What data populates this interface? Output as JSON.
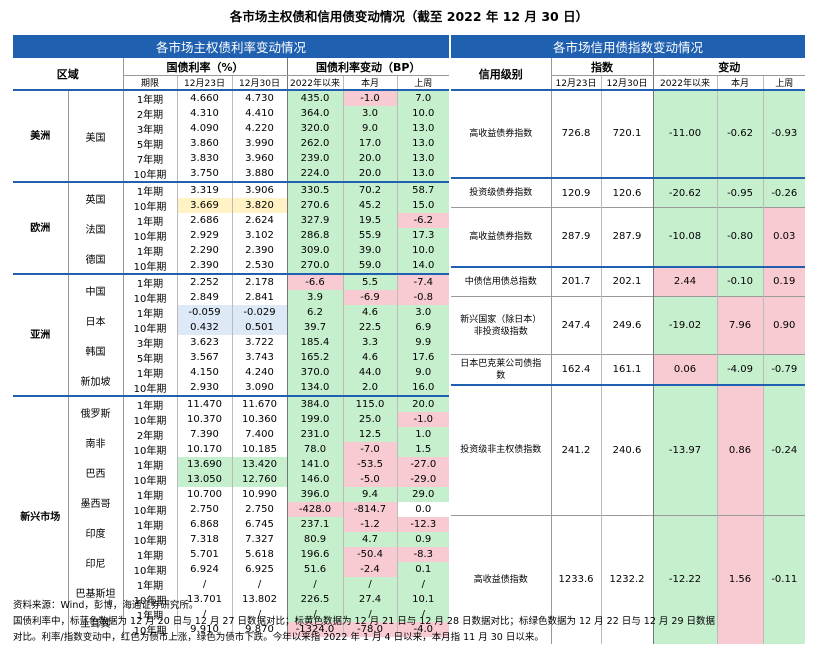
{
  "title": "各市场主权债和信用债变动情况（截至 2022 年 12 月 30 日）",
  "left": {
    "banner": "各市场主权债利率变动情况",
    "region_header": "区域",
    "yield_header": "国债利率（%）",
    "change_header": "国债利率变动（BP）",
    "sub": {
      "term": "期限",
      "d1": "12月23日",
      "d2": "12月30日",
      "ytd": "2022年以来",
      "mtd": "本月",
      "wk": "上周"
    },
    "regions": [
      {
        "name": "美洲",
        "countries": [
          {
            "name": "美国",
            "rows": [
              {
                "term": "1年期",
                "d1": "4.660",
                "d2": "4.730",
                "ytd": "435.0",
                "mtd": "-1.0",
                "wk": "7.0",
                "cm": "red"
              },
              {
                "term": "2年期",
                "d1": "4.310",
                "d2": "4.410",
                "ytd": "364.0",
                "mtd": "3.0",
                "wk": "10.0"
              },
              {
                "term": "3年期",
                "d1": "4.090",
                "d2": "4.220",
                "ytd": "320.0",
                "mtd": "9.0",
                "wk": "13.0"
              },
              {
                "term": "5年期",
                "d1": "3.860",
                "d2": "3.990",
                "ytd": "262.0",
                "mtd": "17.0",
                "wk": "13.0"
              },
              {
                "term": "7年期",
                "d1": "3.830",
                "d2": "3.960",
                "ytd": "239.0",
                "mtd": "20.0",
                "wk": "13.0"
              },
              {
                "term": "10年期",
                "d1": "3.750",
                "d2": "3.880",
                "ytd": "224.0",
                "mtd": "20.0",
                "wk": "13.0"
              }
            ]
          }
        ]
      },
      {
        "name": "欧洲",
        "countries": [
          {
            "name": "英国",
            "rows": [
              {
                "term": "1年期",
                "d1": "3.319",
                "d2": "3.906",
                "ytd": "330.5",
                "mtd": "70.2",
                "wk": "58.7"
              },
              {
                "term": "10年期",
                "d1": "3.669",
                "d2": "3.820",
                "ytd": "270.6",
                "mtd": "45.2",
                "wk": "15.0",
                "dc": "yellow"
              }
            ]
          },
          {
            "name": "法国",
            "rows": [
              {
                "term": "1年期",
                "d1": "2.686",
                "d2": "2.624",
                "ytd": "327.9",
                "mtd": "19.5",
                "wk": "-6.2",
                "cw": "red"
              },
              {
                "term": "10年期",
                "d1": "2.929",
                "d2": "3.102",
                "ytd": "286.8",
                "mtd": "55.9",
                "wk": "17.3"
              }
            ]
          },
          {
            "name": "德国",
            "rows": [
              {
                "term": "1年期",
                "d1": "2.290",
                "d2": "2.390",
                "ytd": "309.0",
                "mtd": "39.0",
                "wk": "10.0"
              },
              {
                "term": "10年期",
                "d1": "2.390",
                "d2": "2.530",
                "ytd": "270.0",
                "mtd": "59.0",
                "wk": "14.0"
              }
            ]
          }
        ]
      },
      {
        "name": "亚洲",
        "countries": [
          {
            "name": "中国",
            "rows": [
              {
                "term": "1年期",
                "d1": "2.252",
                "d2": "2.178",
                "ytd": "-6.6",
                "mtd": "5.5",
                "wk": "-7.4",
                "cy": "red",
                "cw": "red"
              },
              {
                "term": "10年期",
                "d1": "2.849",
                "d2": "2.841",
                "ytd": "3.9",
                "mtd": "-6.9",
                "wk": "-0.8",
                "cm": "red",
                "cw": "red"
              }
            ]
          },
          {
            "name": "日本",
            "rows": [
              {
                "term": "1年期",
                "d1": "-0.059",
                "d2": "-0.029",
                "ytd": "6.2",
                "mtd": "4.6",
                "wk": "3.0",
                "dc": "lblue"
              },
              {
                "term": "10年期",
                "d1": "0.432",
                "d2": "0.501",
                "ytd": "39.7",
                "mtd": "22.5",
                "wk": "6.9",
                "dc": "lblue"
              }
            ]
          },
          {
            "name": "韩国",
            "rows": [
              {
                "term": "3年期",
                "d1": "3.623",
                "d2": "3.722",
                "ytd": "185.4",
                "mtd": "3.3",
                "wk": "9.9"
              },
              {
                "term": "5年期",
                "d1": "3.567",
                "d2": "3.743",
                "ytd": "165.2",
                "mtd": "4.6",
                "wk": "17.6"
              }
            ]
          },
          {
            "name": "新加坡",
            "rows": [
              {
                "term": "1年期",
                "d1": "4.150",
                "d2": "4.240",
                "ytd": "370.0",
                "mtd": "44.0",
                "wk": "9.0"
              },
              {
                "term": "10年期",
                "d1": "2.930",
                "d2": "3.090",
                "ytd": "134.0",
                "mtd": "2.0",
                "wk": "16.0"
              }
            ]
          }
        ]
      },
      {
        "name": "新兴市场",
        "countries": [
          {
            "name": "俄罗斯",
            "rows": [
              {
                "term": "1年期",
                "d1": "11.470",
                "d2": "11.670",
                "ytd": "384.0",
                "mtd": "115.0",
                "wk": "20.0"
              },
              {
                "term": "10年期",
                "d1": "10.370",
                "d2": "10.360",
                "ytd": "199.0",
                "mtd": "25.0",
                "wk": "-1.0",
                "cw": "red"
              }
            ]
          },
          {
            "name": "南非",
            "rows": [
              {
                "term": "2年期",
                "d1": "7.390",
                "d2": "7.400",
                "ytd": "231.0",
                "mtd": "12.5",
                "wk": "1.0"
              },
              {
                "term": "10年期",
                "d1": "10.170",
                "d2": "10.185",
                "ytd": "78.0",
                "mtd": "-7.0",
                "wk": "1.5",
                "cm": "red"
              }
            ]
          },
          {
            "name": "巴西",
            "rows": [
              {
                "term": "1年期",
                "d1": "13.690",
                "d2": "13.420",
                "ytd": "141.0",
                "mtd": "-53.5",
                "wk": "-27.0",
                "dc": "green",
                "cm": "red",
                "cw": "red"
              },
              {
                "term": "10年期",
                "d1": "13.050",
                "d2": "12.760",
                "ytd": "146.0",
                "mtd": "-5.0",
                "wk": "-29.0",
                "dc": "green",
                "cm": "red",
                "cw": "red"
              }
            ]
          },
          {
            "name": "墨西哥",
            "rows": [
              {
                "term": "1年期",
                "d1": "10.700",
                "d2": "10.990",
                "ytd": "396.0",
                "mtd": "9.4",
                "wk": "29.0"
              },
              {
                "term": "10年期",
                "d1": "2.750",
                "d2": "2.750",
                "ytd": "-428.0",
                "mtd": "-814.7",
                "wk": "0.0",
                "cy": "red",
                "cm": "red",
                "cw": "none"
              }
            ]
          },
          {
            "name": "印度",
            "rows": [
              {
                "term": "1年期",
                "d1": "6.868",
                "d2": "6.745",
                "ytd": "237.1",
                "mtd": "-1.2",
                "wk": "-12.3",
                "cm": "red",
                "cw": "red"
              },
              {
                "term": "10年期",
                "d1": "7.318",
                "d2": "7.327",
                "ytd": "80.9",
                "mtd": "4.7",
                "wk": "0.9"
              }
            ]
          },
          {
            "name": "印尼",
            "rows": [
              {
                "term": "1年期",
                "d1": "5.701",
                "d2": "5.618",
                "ytd": "196.6",
                "mtd": "-50.4",
                "wk": "-8.3",
                "cm": "red",
                "cw": "red"
              },
              {
                "term": "10年期",
                "d1": "6.924",
                "d2": "6.925",
                "ytd": "51.6",
                "mtd": "-2.4",
                "wk": "0.1",
                "cm": "red"
              }
            ]
          },
          {
            "name": "巴基斯坦",
            "rows": [
              {
                "term": "1年期",
                "d1": "/",
                "d2": "/",
                "ytd": "/",
                "mtd": "/",
                "wk": "/"
              },
              {
                "term": "10年期",
                "d1": "13.701",
                "d2": "13.802",
                "ytd": "226.5",
                "mtd": "27.4",
                "wk": "10.1"
              }
            ]
          },
          {
            "name": "土耳其",
            "rows": [
              {
                "term": "1年期",
                "d1": "/",
                "d2": "/",
                "ytd": "/",
                "mtd": "/",
                "wk": "/"
              },
              {
                "term": "10年期",
                "d1": "9.910",
                "d2": "9.870",
                "ytd": "-1324.0",
                "mtd": "-78.0",
                "wk": "-4.0",
                "cy": "red",
                "cm": "red",
                "cw": "red"
              }
            ]
          }
        ]
      }
    ]
  },
  "right": {
    "banner": "各市场信用债指数变动情况",
    "rating_header": "信用级别",
    "index_header": "指数",
    "change_header": "变动",
    "sub": {
      "d1": "12月23日",
      "d2": "12月30日",
      "ytd": "2022年以来",
      "mtd": "本月",
      "wk": "上周"
    },
    "rows": [
      {
        "name": "高收益债券指数",
        "d1": "726.8",
        "d2": "720.1",
        "ytd": "-11.00",
        "mtd": "-0.62",
        "wk": "-0.93",
        "cy": "green",
        "cm": "green",
        "cw": "green"
      },
      {
        "name": "投资级债券指数",
        "d1": "120.9",
        "d2": "120.6",
        "ytd": "-20.62",
        "mtd": "-0.95",
        "wk": "-0.26",
        "cy": "green",
        "cm": "green",
        "cw": "green"
      },
      {
        "name": "高收益债券指数",
        "d1": "287.9",
        "d2": "287.9",
        "ytd": "-10.08",
        "mtd": "-0.80",
        "wk": "0.03",
        "cy": "green",
        "cm": "green",
        "cw": "red"
      },
      {
        "name": "中债信用债总指数",
        "d1": "201.7",
        "d2": "202.1",
        "ytd": "2.44",
        "mtd": "-0.10",
        "wk": "0.19",
        "cy": "red",
        "cm": "green",
        "cw": "red"
      },
      {
        "name": "新兴国家（除日本）非投资级指数",
        "d1": "247.4",
        "d2": "249.6",
        "ytd": "-19.02",
        "mtd": "7.96",
        "wk": "0.90",
        "cy": "green",
        "cm": "red",
        "cw": "red"
      },
      {
        "name": "日本巴克莱公司债指数",
        "d1": "162.4",
        "d2": "161.1",
        "ytd": "0.06",
        "mtd": "-4.09",
        "wk": "-0.79",
        "cy": "red",
        "cm": "green",
        "cw": "green"
      },
      {
        "name": "投资级非主权债指数",
        "d1": "241.2",
        "d2": "240.6",
        "ytd": "-13.97",
        "mtd": "0.86",
        "wk": "-0.24",
        "cy": "green",
        "cm": "red",
        "cw": "green"
      },
      {
        "name": "高收益债指数",
        "d1": "1233.6",
        "d2": "1232.2",
        "ytd": "-12.22",
        "mtd": "1.56",
        "wk": "-0.11",
        "cy": "green",
        "cm": "red",
        "cw": "green"
      }
    ]
  },
  "notes": [
    "资料来源：Wind，彭博，海通证券研究所。",
    "国债利率中，标蓝色数据为 12 月 20 日与 12 月 27 日数据对比；标黄色数据为 12 月 21 日与 12 月 28 日数据对比；标绿色数据为 12 月 22 日与 12 月 29 日数据",
    "对比。利率/指数变动中，红色为债市上涨，绿色为债市下跌。今年以来指 2022 年 1 月 4 日以来，本月指 11 月 30 日以来。"
  ]
}
